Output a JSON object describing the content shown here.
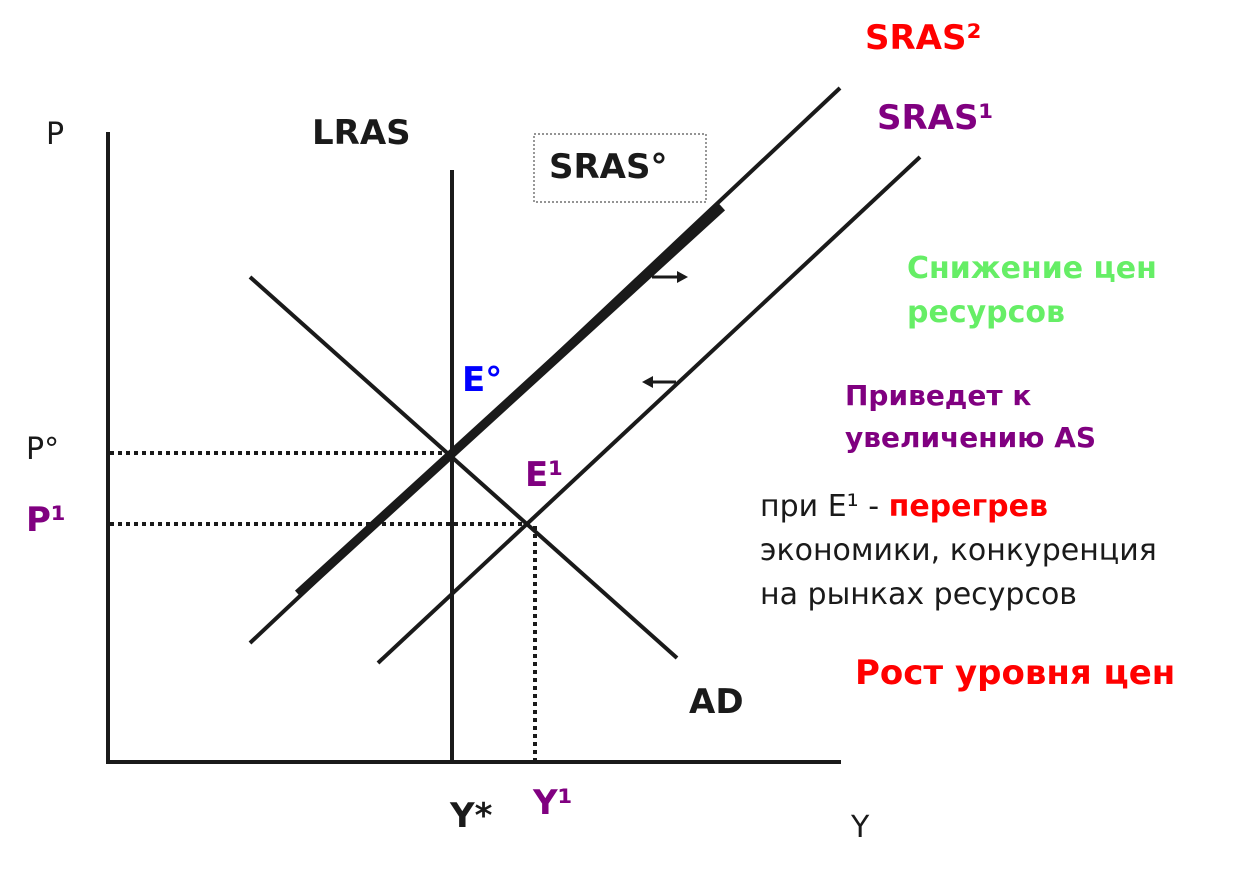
{
  "axes": {
    "y_label": "P",
    "x_label": "Y"
  },
  "curves": {
    "lras": "LRAS",
    "sras0": "SRAS°",
    "sras1": "SRAS¹",
    "sras2": "SRAS²",
    "ad": "AD"
  },
  "points": {
    "e0": "E°",
    "e1": "E¹",
    "p0": "P°",
    "p1": "P¹",
    "ystar": "Y*",
    "y1": "Y¹"
  },
  "notes": {
    "resource_price_line1": "Снижение цен",
    "resource_price_line2": "ресурсов",
    "increase_line1": "Приведет к",
    "increase_line2": "увеличению AS",
    "overheat_prefix": "при Е",
    "overheat_sup": "¹",
    "overheat_dash": "-",
    "overheat_word": "перегрев",
    "overheat_line2": "экономики, конкуренция",
    "overheat_line3": "на рынках ресурсов",
    "price_growth": "Рост уровня цен"
  },
  "colors": {
    "black": "#1a1a1a",
    "red": "#ff0000",
    "purple": "#800080",
    "blue": "#0000ff",
    "green": "#66ee66"
  }
}
